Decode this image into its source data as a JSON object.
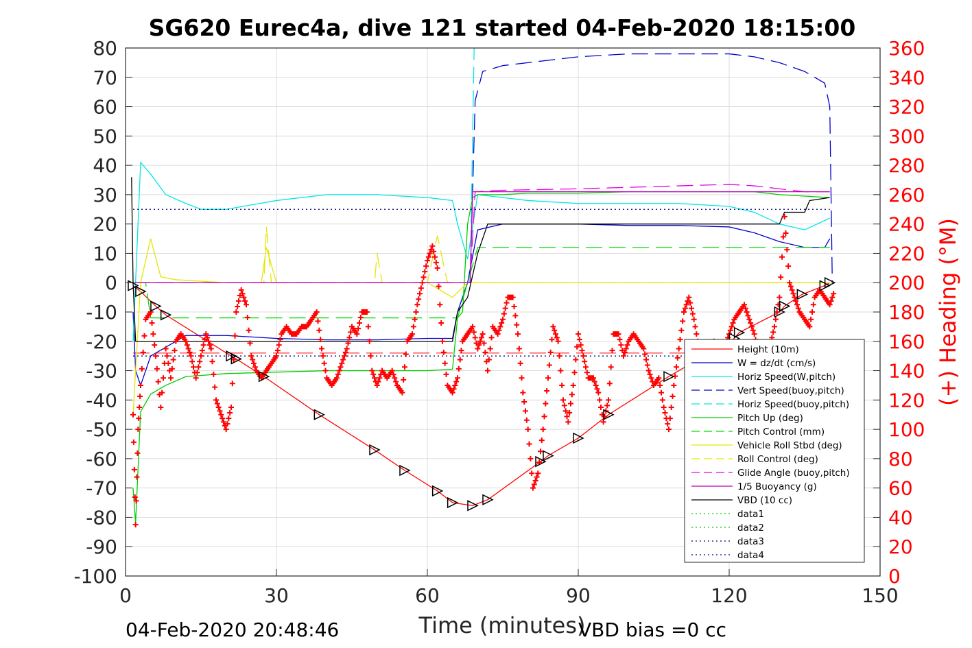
{
  "chart_data": {
    "type": "line",
    "title": "SG620 Eurec4a, dive 121 started 04-Feb-2020 18:15:00",
    "xlabel": "Time (minutes)",
    "ylabel_right": "(+) Heading (°M)",
    "footer_left": "04-Feb-2020 20:48:46",
    "footer_right": "VBD bias =0 cc",
    "xlim": [
      0,
      150
    ],
    "ylim": [
      -100,
      80
    ],
    "y2lim": [
      0,
      360
    ],
    "xticks": [
      0,
      30,
      60,
      90,
      120,
      150
    ],
    "yticks": [
      80,
      70,
      60,
      50,
      40,
      30,
      20,
      10,
      0,
      -10,
      -20,
      -30,
      -40,
      -50,
      -60,
      -70,
      -80,
      -90,
      -100
    ],
    "y2ticks": [
      360,
      340,
      320,
      300,
      280,
      260,
      240,
      220,
      200,
      180,
      160,
      140,
      120,
      100,
      80,
      60,
      40,
      20,
      0
    ],
    "grid": true,
    "legend_position": "bottom-right",
    "colors": {
      "heading_axis": "#ff0000"
    },
    "series": [
      {
        "name": "Height (10m)",
        "color": "#ff0000",
        "style": "solid",
        "x": [
          1.5,
          3,
          6,
          8,
          21,
          22,
          27.5,
          38.5,
          49.5,
          55.5,
          62,
          65,
          69,
          72,
          82.5,
          84,
          90,
          96,
          108,
          121,
          122,
          130,
          131,
          134.5,
          139,
          140
        ],
        "y": [
          -1,
          -3,
          -8,
          -11,
          -25,
          -26,
          -32,
          -45,
          -57,
          -64,
          -71,
          -75,
          -76,
          -74,
          -61,
          -59,
          -53,
          -45,
          -32,
          -19,
          -17,
          -10,
          -8,
          -4,
          -1,
          0
        ]
      },
      {
        "name": "W = dz/dt (cm/s)",
        "color": "#0000cc",
        "style": "solid",
        "x": [
          1.5,
          2,
          3,
          5,
          8,
          12,
          20,
          30,
          40,
          50,
          60,
          65,
          66,
          68,
          70,
          75,
          80,
          90,
          100,
          110,
          120,
          125,
          130,
          135,
          139,
          140
        ],
        "y": [
          -10,
          -30,
          -35,
          -25,
          -22,
          -18,
          -18,
          -19,
          -19.5,
          -19.5,
          -19,
          -19,
          -10,
          0,
          18,
          20,
          20,
          20,
          19.5,
          19.5,
          19,
          17,
          14,
          12,
          12,
          15
        ]
      },
      {
        "name": "Horiz Speed(W,pitch)",
        "color": "#00e6e6",
        "style": "solid",
        "x": [
          1.5,
          3,
          5,
          8,
          12,
          15,
          20,
          30,
          40,
          50,
          60,
          65,
          66,
          68,
          70,
          75,
          80,
          90,
          100,
          110,
          120,
          125,
          130,
          135,
          140
        ],
        "y": [
          -20,
          41,
          37,
          30,
          27,
          25,
          25,
          28,
          30,
          30,
          29,
          28,
          20,
          8,
          30,
          29,
          28,
          27,
          27,
          27,
          26,
          24,
          20,
          18,
          22
        ]
      },
      {
        "name": "Vert Speed(buoy,pitch)",
        "color": "#0000cc",
        "style": "dashed",
        "x": [
          1.5,
          68.5,
          69.5,
          71,
          75,
          80,
          90,
          100,
          110,
          120,
          125,
          130,
          135,
          139,
          140,
          140.5
        ],
        "y": [
          0,
          0,
          62,
          72,
          74,
          75,
          77,
          78,
          78,
          78,
          77,
          75,
          72,
          68,
          60,
          0
        ]
      },
      {
        "name": "Horiz Speed(buoy,pitch)",
        "color": "#00e6e6",
        "style": "dashed",
        "x": [
          1.5,
          68.5,
          69.3
        ],
        "y": [
          0,
          0,
          80
        ]
      },
      {
        "name": "Pitch Up (deg)",
        "color": "#00cc00",
        "style": "solid",
        "x": [
          1.5,
          2,
          3,
          5,
          8,
          12,
          20,
          30,
          40,
          50,
          60,
          65,
          66,
          67,
          68,
          69,
          70,
          75,
          80,
          90,
          100,
          110,
          120,
          125,
          130,
          135,
          140
        ],
        "y": [
          -70,
          -82,
          -44,
          -38,
          -35,
          -32,
          -31,
          -30.5,
          -30,
          -30,
          -30,
          -29.5,
          -12,
          -10,
          20,
          29,
          30,
          30,
          30.5,
          30.5,
          31,
          31,
          31,
          31,
          30,
          29.5,
          29
        ]
      },
      {
        "name": "Pitch Control (mm)",
        "color": "#00dd00",
        "style": "dashed",
        "x": [
          1.5,
          4,
          5,
          65,
          66,
          70,
          140
        ],
        "y": [
          0,
          0,
          -12,
          -12,
          -12,
          12,
          12
        ]
      },
      {
        "name": "Vehicle Roll Stbd (deg)",
        "color": "#e6e600",
        "style": "solid",
        "x": [
          1.5,
          3,
          5,
          7,
          10,
          20,
          27,
          28,
          30,
          40,
          50,
          60,
          65,
          68,
          70,
          80,
          90,
          100,
          110,
          120,
          130,
          135,
          140
        ],
        "y": [
          -45,
          0,
          15,
          2,
          1,
          0,
          0,
          12,
          0,
          0,
          0,
          0,
          -5,
          0,
          0,
          0,
          0,
          0,
          0,
          0,
          0,
          0,
          0
        ]
      },
      {
        "name": "Roll Control (deg)",
        "color": "#e6e600",
        "style": "dashed",
        "x": [
          1.5,
          3,
          27.5,
          28,
          29,
          49.5,
          50,
          51,
          60,
          62,
          64,
          140
        ],
        "y": [
          0,
          0,
          0,
          19,
          0,
          0,
          10,
          0,
          0,
          16,
          0,
          0
        ]
      },
      {
        "name": "Glide Angle (buoy,pitch)",
        "color": "#e600e6",
        "style": "dashed",
        "x": [
          1.5,
          68.5,
          69.5,
          75,
          90,
          100,
          110,
          120,
          125,
          130,
          135,
          140
        ],
        "y": [
          0,
          0,
          31,
          31.5,
          32,
          32.5,
          33,
          33.5,
          33,
          32,
          31,
          31
        ]
      },
      {
        "name": "1/5 Buoyancy (g)",
        "color": "#bb00bb",
        "style": "solid",
        "x": [
          1.5,
          68.5,
          69,
          140
        ],
        "y": [
          0,
          0,
          31,
          31
        ]
      },
      {
        "name": "VBD (10 cc)",
        "color": "#000000",
        "style": "solid",
        "x": [
          1.2,
          1.5,
          2,
          2.5,
          65,
          66,
          68,
          70,
          72,
          90,
          110,
          125,
          126,
          130,
          131,
          135,
          136,
          140
        ],
        "y": [
          36,
          0,
          -20,
          -20,
          -20,
          -10,
          -5,
          10,
          20,
          20,
          20,
          20,
          20,
          20,
          24,
          24,
          28,
          29
        ]
      },
      {
        "name": "data1",
        "color": "#00cc00",
        "style": "dotted",
        "x": [],
        "y": []
      },
      {
        "name": "data2",
        "color": "#00cc00",
        "style": "dotted",
        "x": [],
        "y": []
      },
      {
        "name": "data3",
        "color": "#00007f",
        "style": "dotted",
        "x": [
          1.5,
          140
        ],
        "y": [
          25,
          25
        ]
      },
      {
        "name": "data4",
        "color": "#00007f",
        "style": "dotted",
        "x": [
          1.5,
          140
        ],
        "y": [
          -25,
          -25
        ]
      }
    ],
    "reference_lines": [
      {
        "color": "#ff0000",
        "style": "dashed",
        "x": [
          1.5,
          140
        ],
        "y": [
          -24,
          -24
        ]
      }
    ],
    "heading": {
      "name": "(+) Heading (°M)",
      "color": "#ff0000",
      "marker": "+",
      "x": [
        1.5,
        2,
        2.5,
        3,
        4,
        5,
        6,
        7,
        8,
        9,
        10,
        11,
        12,
        13,
        14,
        15,
        16,
        17,
        18,
        19,
        20,
        21,
        22,
        23,
        24,
        25,
        26,
        27,
        28,
        29,
        30,
        31,
        32,
        33,
        34,
        35,
        36,
        37,
        38,
        39,
        40,
        41,
        42,
        43,
        44,
        45,
        46,
        47,
        48,
        49,
        50,
        51,
        52,
        53,
        54,
        55,
        56,
        57,
        58,
        59,
        60,
        61,
        62,
        63,
        64,
        65,
        66,
        67,
        68,
        69,
        70,
        71,
        72,
        73,
        74,
        75,
        76,
        77,
        78,
        79,
        80,
        81,
        82,
        83,
        84,
        85,
        86,
        87,
        88,
        89,
        90,
        91,
        92,
        93,
        94,
        95,
        96,
        97,
        98,
        99,
        100,
        101,
        102,
        103,
        104,
        105,
        106,
        107,
        108,
        109,
        110,
        111,
        112,
        113,
        114,
        115,
        116,
        117,
        118,
        119,
        120,
        121,
        122,
        123,
        124,
        125,
        126,
        127,
        128,
        129,
        130,
        131,
        132,
        133,
        134,
        135,
        136,
        137,
        138,
        139,
        140,
        141
      ],
      "y": [
        110,
        35,
        100,
        130,
        175,
        180,
        150,
        115,
        155,
        135,
        160,
        165,
        160,
        150,
        135,
        150,
        165,
        155,
        120,
        110,
        100,
        115,
        180,
        195,
        185,
        150,
        140,
        135,
        140,
        145,
        150,
        165,
        170,
        165,
        165,
        170,
        170,
        175,
        180,
        155,
        135,
        130,
        135,
        145,
        155,
        170,
        165,
        180,
        180,
        140,
        130,
        140,
        135,
        140,
        130,
        125,
        160,
        165,
        185,
        200,
        215,
        225,
        210,
        160,
        130,
        125,
        135,
        160,
        165,
        170,
        155,
        165,
        140,
        170,
        165,
        175,
        190,
        190,
        165,
        125,
        100,
        60,
        70,
        100,
        135,
        170,
        160,
        120,
        105,
        130,
        165,
        150,
        135,
        135,
        125,
        105,
        120,
        165,
        165,
        150,
        160,
        165,
        160,
        155,
        140,
        130,
        135,
        115,
        100,
        130,
        155,
        180,
        190,
        175,
        155,
        140,
        150,
        160,
        145,
        155,
        165,
        175,
        180,
        185,
        175,
        165,
        150,
        140,
        155,
        170,
        190,
        245,
        200,
        190,
        180,
        175,
        170,
        190,
        195,
        190,
        185,
        195
      ]
    }
  }
}
